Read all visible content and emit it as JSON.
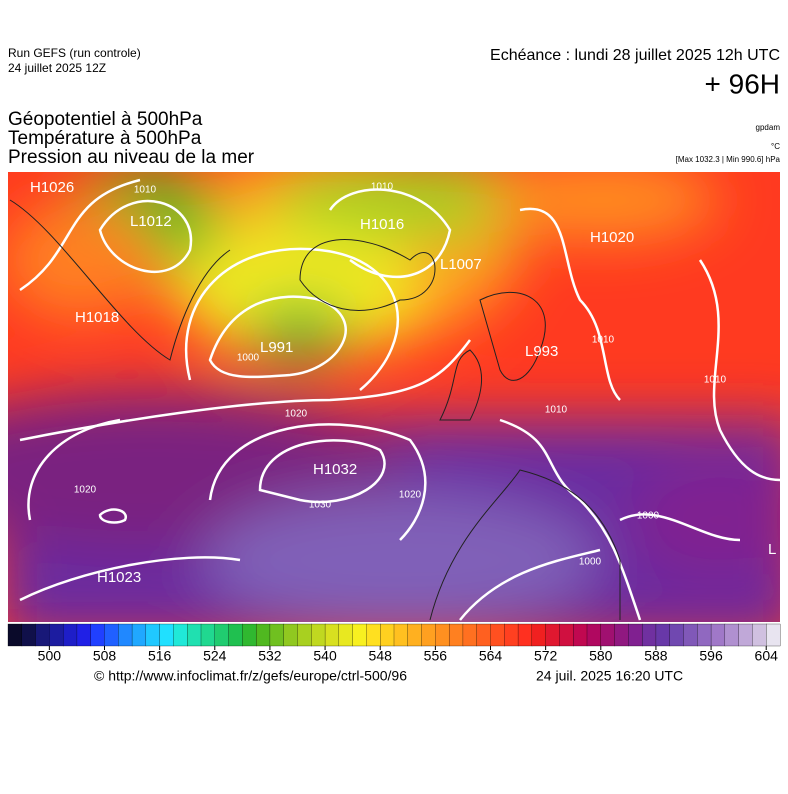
{
  "header": {
    "run": "Run GEFS (run controle)",
    "run_date": "24 juillet 2025 12Z",
    "echeance": "Echéance : lundi 28 juillet 2025 12h UTC",
    "lead": "+ 96H",
    "fields": [
      "Géopotentiel à 500hPa",
      "Température à 500hPa",
      "Pression au niveau de la mer"
    ],
    "units": [
      "gpdam",
      "°C",
      "[Max 1032.3 | Min 990.6] hPa"
    ]
  },
  "map": {
    "pressure_centers": [
      "H1026",
      "L1012",
      "H1016",
      "L1007",
      "H1020",
      "H1018",
      "L991",
      "H1032",
      "L993",
      "H1023",
      "L"
    ],
    "isobar_labels": [
      "1010",
      "1010",
      "1020",
      "1030",
      "1020",
      "1020",
      "1010",
      "1010",
      "1000",
      "1010",
      "1000",
      "1000"
    ]
  },
  "colorbar": {
    "min": 494,
    "max": 606,
    "ticks": [
      500,
      508,
      516,
      524,
      532,
      540,
      548,
      556,
      564,
      572,
      580,
      588,
      596,
      604
    ],
    "colors": [
      "#0a0a2a",
      "#10104a",
      "#181878",
      "#1c1ca0",
      "#1e1ec8",
      "#2020e6",
      "#2040ff",
      "#2060ff",
      "#2088ff",
      "#20a8ff",
      "#20c8ff",
      "#20e0ff",
      "#20e8d8",
      "#20e0b0",
      "#20d890",
      "#20cc70",
      "#20c050",
      "#30b830",
      "#50b820",
      "#70c020",
      "#90c820",
      "#a8d020",
      "#c0d820",
      "#d8e020",
      "#e8e820",
      "#f8f020",
      "#ffe020",
      "#ffd020",
      "#ffc020",
      "#ffb020",
      "#ffa020",
      "#ff9020",
      "#ff8020",
      "#ff7020",
      "#ff6020",
      "#ff5020",
      "#ff4020",
      "#ff3020",
      "#f02020",
      "#e01830",
      "#d01040",
      "#c00850",
      "#b00860",
      "#a01070",
      "#901880",
      "#802090",
      "#7030a0",
      "#6838a8",
      "#7048b0",
      "#8058b8",
      "#9068c0",
      "#a078c8",
      "#b090d0",
      "#c0a8d8",
      "#d0c0e0",
      "#e8e4f0"
    ]
  },
  "footer": {
    "source": "© http://www.infoclimat.fr/z/gefs/europe/ctrl-500/96",
    "generated": "24 juil. 2025 16:20 UTC"
  }
}
